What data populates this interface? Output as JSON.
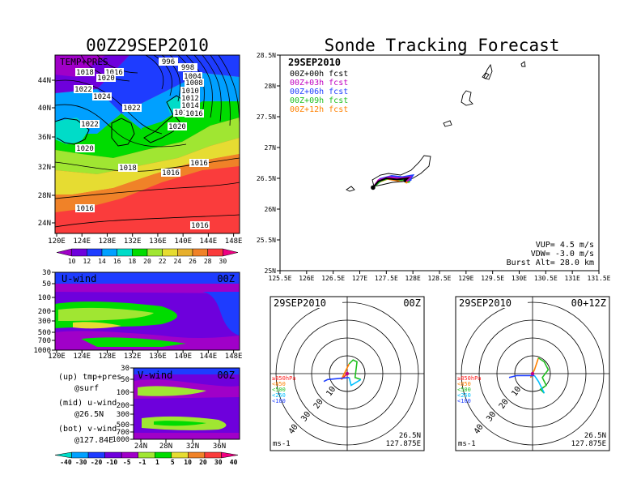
{
  "colors": {
    "temp_scale": [
      "#a000c8",
      "#6e00dc",
      "#1e3cff",
      "#00a0ff",
      "#00dcc8",
      "#00dc00",
      "#a0e632",
      "#e6dc32",
      "#e6af2d",
      "#f08228",
      "#fa3c3c",
      "#f00082"
    ],
    "wind_scale": [
      "#00dcc8",
      "#00a0ff",
      "#1e3cff",
      "#6e00dc",
      "#a000c8",
      "#a0e632",
      "#00dc00",
      "#e6dc32",
      "#f08228",
      "#fa3c3c",
      "#f00082"
    ],
    "sonde_lines": [
      "#000000",
      "#c000c0",
      "#2040ff",
      "#20c020",
      "#ff8000"
    ],
    "land": "#ffffff",
    "ocean_warm": "#fa3c3c"
  },
  "headings": {
    "left_title": "00Z29SEP2010",
    "right_title": "Sonde Tracking Forecast"
  },
  "chart_data": [
    {
      "id": "surface_map",
      "type": "heatmap",
      "title": "00Z29SEP2010",
      "corner_label": "TEMP+PRES",
      "xlabels": [
        "120E",
        "124E",
        "128E",
        "132E",
        "136E",
        "140E",
        "144E",
        "148E"
      ],
      "ylabels": [
        "44N",
        "40N",
        "36N",
        "32N",
        "28N",
        "24N"
      ],
      "pressure_labels": [
        {
          "text": "996"
        },
        {
          "text": "1018"
        },
        {
          "text": "1016"
        },
        {
          "text": "1020"
        },
        {
          "text": "1022"
        },
        {
          "text": "1024"
        },
        {
          "text": "1022"
        },
        {
          "text": "1022"
        },
        {
          "text": "1020"
        },
        {
          "text": "1018"
        },
        {
          "text": "1016"
        },
        {
          "text": "1016"
        },
        {
          "text": "1016"
        },
        {
          "text": "1016"
        },
        {
          "text": "998"
        },
        {
          "text": "1004"
        },
        {
          "text": "1008"
        },
        {
          "text": "1010"
        },
        {
          "text": "1012"
        },
        {
          "text": "1014"
        },
        {
          "text": "1018"
        },
        {
          "text": "1016"
        },
        {
          "text": "1020"
        }
      ],
      "colorbar_labels": [
        "10",
        "12",
        "14",
        "16",
        "18",
        "20",
        "22",
        "24",
        "26",
        "28",
        "30"
      ]
    },
    {
      "id": "u_wind",
      "type": "heatmap",
      "label": "U-wind",
      "time": "00Z",
      "ylabels": [
        "30",
        "50",
        "100",
        "200",
        "300",
        "500",
        "700",
        "1000"
      ],
      "xlabels": [
        "120E",
        "124E",
        "128E",
        "132E",
        "136E",
        "140E",
        "144E",
        "148E"
      ]
    },
    {
      "id": "v_wind",
      "type": "heatmap",
      "label": "V-wind",
      "time": "00Z",
      "ylabels": [
        "30",
        "50",
        "100",
        "200",
        "300",
        "500",
        "700",
        "1000"
      ],
      "xlabels": [
        "24N",
        "28N",
        "32N",
        "36N"
      ],
      "colorbar_labels": [
        "-40",
        "-30",
        "-20",
        "-10",
        "-5",
        "-1",
        "1",
        "5",
        "10",
        "20",
        "30",
        "40"
      ]
    },
    {
      "id": "track_map",
      "type": "line",
      "title": "Sonde Tracking Forecast",
      "date": "29SEP2010",
      "legend": [
        "00Z+00h fcst",
        "00Z+03h fcst",
        "00Z+06h fcst",
        "00Z+09h fcst",
        "00Z+12h fcst"
      ],
      "xlabels": [
        "125.5E",
        "126E",
        "126.5E",
        "127E",
        "127.5E",
        "128E",
        "128.5E",
        "129E",
        "129.5E",
        "130E",
        "130.5E",
        "131E",
        "131.5E"
      ],
      "ylabels": [
        "28.5N",
        "28N",
        "27.5N",
        "27N",
        "26.5N",
        "26N",
        "25.5N",
        "25N"
      ],
      "xlim": [
        125.5,
        131.5
      ],
      "ylim": [
        25,
        28.5
      ],
      "info": [
        "VUP= 4.5 m/s",
        "VDW= -3.0 m/s",
        "Burst Alt= 28.0 km"
      ],
      "launch": {
        "x": 127.25,
        "y": 26.35
      },
      "series": [
        {
          "name": "00Z+00h fcst",
          "x": [
            127.25,
            127.35,
            127.5,
            127.7,
            127.9,
            127.85
          ],
          "y": [
            26.35,
            26.45,
            26.5,
            26.48,
            26.5,
            26.46
          ]
        },
        {
          "name": "00Z+03h fcst",
          "x": [
            127.25,
            127.35,
            127.55,
            127.75,
            127.95,
            127.9
          ],
          "y": [
            26.35,
            26.47,
            26.52,
            26.5,
            26.52,
            26.47
          ]
        },
        {
          "name": "00Z+06h fcst",
          "x": [
            127.25,
            127.38,
            127.6,
            127.8,
            128.0,
            127.95
          ],
          "y": [
            26.35,
            26.49,
            26.54,
            26.52,
            26.55,
            26.48
          ]
        },
        {
          "name": "00Z+09h fcst",
          "x": [
            127.25,
            127.4,
            127.58,
            127.78,
            127.95,
            127.92
          ],
          "y": [
            26.35,
            26.46,
            26.51,
            26.47,
            26.5,
            26.45
          ]
        },
        {
          "name": "00Z+12h fcst",
          "x": [
            127.25,
            127.36,
            127.52,
            127.72,
            127.9,
            127.88
          ],
          "y": [
            26.35,
            26.44,
            26.49,
            26.46,
            26.48,
            26.44
          ]
        }
      ]
    },
    {
      "id": "hodograph_00z",
      "type": "line",
      "date": "29SEP2010",
      "time": "00Z",
      "ring_labels": [
        "10",
        "20",
        "30",
        "40"
      ],
      "legend": [
        "≥850hPa",
        "<850",
        "<500",
        "<250",
        "<100"
      ],
      "legend_colors": [
        "#ff2020",
        "#ff8000",
        "#20c020",
        "#00c0ff",
        "#2040ff"
      ],
      "units": "ms-1",
      "location": [
        "26.5N",
        "127.875E"
      ],
      "series": [
        {
          "name": "≥850hPa",
          "u": [
            0,
            -1.5
          ],
          "v": [
            0,
            -1.5
          ]
        },
        {
          "name": "<850",
          "u": [
            -1.5,
            -0.5,
            0.5
          ],
          "v": [
            -1.5,
            0.5,
            2.5
          ]
        },
        {
          "name": "<500",
          "u": [
            0.5,
            1.5,
            2.5,
            2,
            3.5
          ],
          "v": [
            2.5,
            3.5,
            3,
            -1,
            -1.5
          ]
        },
        {
          "name": "<250",
          "u": [
            3.5,
            1,
            0.5
          ],
          "v": [
            -1.5,
            -3,
            -1
          ]
        },
        {
          "name": "<100",
          "u": [
            0.5,
            -5,
            -6
          ],
          "v": [
            -1,
            -1.5,
            -2
          ]
        }
      ]
    },
    {
      "id": "hodograph_12z",
      "type": "line",
      "date": "29SEP2010",
      "time": "00+12Z",
      "ring_labels": [
        "10",
        "20",
        "30",
        "40"
      ],
      "legend": [
        "≥850hPa",
        "<850",
        "<500",
        "<250",
        "<100"
      ],
      "legend_colors": [
        "#ff2020",
        "#ff8000",
        "#20c020",
        "#00c0ff",
        "#2040ff"
      ],
      "units": "ms-1",
      "location": [
        "26.5N",
        "127.875E"
      ],
      "series": [
        {
          "name": "≥850hPa",
          "u": [
            0,
            -0.5
          ],
          "v": [
            0,
            -1
          ]
        },
        {
          "name": "<850",
          "u": [
            -0.5,
            0.5,
            1.5
          ],
          "v": [
            -1,
            1,
            4
          ]
        },
        {
          "name": "<500",
          "u": [
            1.5,
            3,
            4,
            2.5,
            3.5,
            2,
            3
          ],
          "v": [
            4,
            3,
            1,
            -1,
            -3,
            -4,
            -5
          ]
        },
        {
          "name": "<250",
          "u": [
            3,
            1.5,
            0.5
          ],
          "v": [
            -5,
            -2,
            -0.5
          ]
        },
        {
          "name": "<100",
          "u": [
            0.5,
            -4,
            -6
          ],
          "v": [
            -0.5,
            -0.5,
            -1
          ]
        }
      ]
    }
  ],
  "footnotes": {
    "up": "(up) tmp+pres",
    "up_sub": "@surf",
    "mid": "(mid) u-wind",
    "mid_sub": "@26.5N",
    "bot": "(bot) v-wind",
    "bot_sub": "@127.84E"
  }
}
